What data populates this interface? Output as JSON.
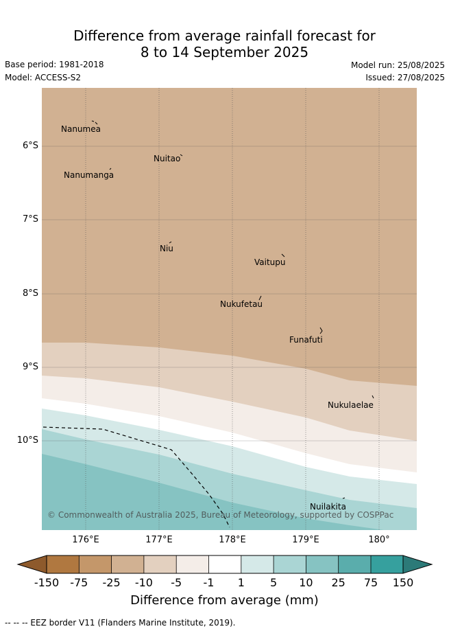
{
  "title": {
    "line1": "Difference from average rainfall forecast for",
    "line2": "8 to 14 September 2025"
  },
  "meta": {
    "base_period": "Base period: 1981-2018",
    "model": "Model: ACCESS-S2",
    "model_run": "Model run: 25/08/2025",
    "issued": "Issued: 27/08/2025"
  },
  "map": {
    "lat_range": [
      -11.2,
      -5.2
    ],
    "lon_range": [
      175.4,
      180.5
    ],
    "lat_ticks": [
      {
        "value": -6,
        "label": "6°S"
      },
      {
        "value": -7,
        "label": "7°S"
      },
      {
        "value": -8,
        "label": "8°S"
      },
      {
        "value": -9,
        "label": "9°S"
      },
      {
        "value": -10,
        "label": "10°S"
      }
    ],
    "lon_ticks": [
      {
        "value": 176,
        "label": "176°E"
      },
      {
        "value": 177,
        "label": "177°E"
      },
      {
        "value": 178,
        "label": "178°E"
      },
      {
        "value": 179,
        "label": "179°E"
      },
      {
        "value": 180,
        "label": "180°"
      }
    ],
    "places": [
      {
        "name": "Nanumea",
        "lon": 176.1,
        "lat": -5.68
      },
      {
        "name": "Nuitao",
        "lon": 177.3,
        "lat": -6.11
      },
      {
        "name": "Nanumanga",
        "lon": 176.33,
        "lat": -6.3
      },
      {
        "name": "Niu",
        "lon": 177.17,
        "lat": -7.28
      },
      {
        "name": "Vaitupu",
        "lon": 178.67,
        "lat": -7.48
      },
      {
        "name": "Nukufetau",
        "lon": 178.38,
        "lat": -8.03
      },
      {
        "name": "Funafuti",
        "lon": 179.2,
        "lat": -8.52
      },
      {
        "name": "Nukulaelae",
        "lon": 179.83,
        "lat": -9.38
      },
      {
        "name": "Nuilakita",
        "lon": 179.45,
        "lat": -10.78
      }
    ],
    "attribution": "© Commonwealth of Australia 2025, Bureau of Meteorology, supported by COSPPac"
  },
  "colorbar": {
    "title": "Difference from average (mm)",
    "labels": [
      "-150",
      "-75",
      "-25",
      "-10",
      "-5",
      "-1",
      "1",
      "5",
      "10",
      "25",
      "75",
      "150"
    ],
    "colors": [
      "#8e5a2c",
      "#b07840",
      "#c4976a",
      "#d1b192",
      "#e3d0bf",
      "#f4ede8",
      "#ffffff",
      "#d5e9e8",
      "#aad5d4",
      "#86c3c2",
      "#5aadac",
      "#36a09e",
      "#2c7a78"
    ]
  },
  "footnote": "--  --  -- EEZ border V11 (Flanders Marine Institute, 2019)."
}
